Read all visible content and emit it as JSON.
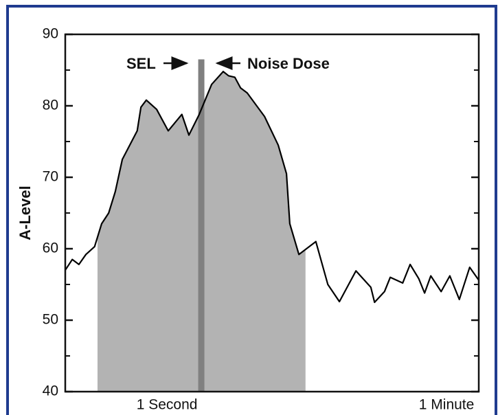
{
  "chart_data": {
    "type": "line",
    "ylabel": "A-Level",
    "x": [
      0,
      1.7,
      3.3,
      5.0,
      7.1,
      8.8,
      10.5,
      12.1,
      13.8,
      17.4,
      18.3,
      19.6,
      22.1,
      24.9,
      28.2,
      29.9,
      32.4,
      35.4,
      38.2,
      39.5,
      41.0,
      42.4,
      44.0,
      48.2,
      51.5,
      53.5,
      54.3,
      56.5,
      60.6,
      63.5,
      66.3,
      70.3,
      73.9,
      74.8,
      77.2,
      78.6,
      81.6,
      83.4,
      85.5,
      86.9,
      88.4,
      90.9,
      93.0,
      95.3,
      97.8,
      100
    ],
    "values": [
      57,
      58.5,
      57.8,
      59.2,
      60.3,
      63.5,
      65,
      68,
      72.5,
      76.5,
      79.8,
      80.8,
      79.5,
      76.5,
      78.8,
      75.9,
      78.8,
      83,
      84.8,
      84.2,
      84,
      82.5,
      81.8,
      78.5,
      74.5,
      70.5,
      63.5,
      59.2,
      61,
      55,
      52.6,
      56.9,
      54.6,
      52.5,
      54,
      56,
      55.2,
      57.8,
      55.8,
      53.8,
      56.2,
      54,
      56.2,
      52.9,
      57.4,
      55.6
    ],
    "color": "#000000",
    "shade_range": [
      7.8,
      58.1
    ],
    "shade_color": "#b3b3b3",
    "marker_x": 32.9,
    "marker_top": 86.5,
    "marker_color": "#808080",
    "annotations": [
      "SEL",
      "Noise Dose"
    ],
    "xlim": [
      0,
      100
    ],
    "xticks": [
      {
        "value": 24.6,
        "label": "1 Second"
      },
      {
        "value": 92.2,
        "label": "1 Minute"
      }
    ],
    "ylim": [
      40,
      90
    ],
    "yticks": [
      40,
      50,
      60,
      70,
      80,
      90
    ],
    "yminor": [
      45,
      55,
      65,
      75,
      85
    ]
  }
}
